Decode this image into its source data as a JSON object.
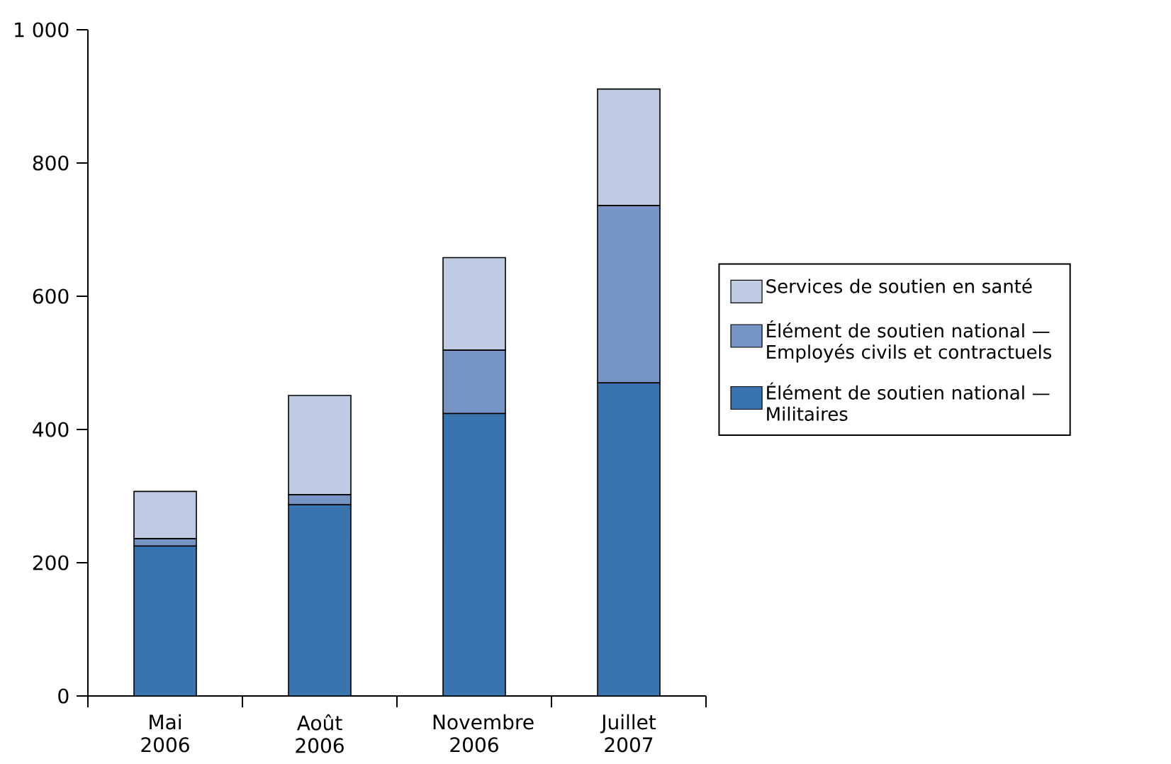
{
  "chart_data": {
    "type": "bar",
    "stacked": true,
    "categories": [
      "Mai 2006",
      "Août 2006",
      "Novembre 2006",
      "Juillet 2007"
    ],
    "series": [
      {
        "name": "Élément de soutien national — Militaires",
        "color": "#3a74ae",
        "values": [
          225,
          287,
          424,
          470
        ]
      },
      {
        "name": "Élément de soutien national — Employés civils et contractuels",
        "color": "#7795c4",
        "values": [
          11,
          15,
          95,
          266
        ]
      },
      {
        "name": "Services de soutien en santé",
        "color": "#bfcbe3",
        "values": [
          71,
          149,
          139,
          175
        ]
      }
    ],
    "ylim": [
      0,
      1000
    ],
    "yticks": [
      0,
      200,
      400,
      600,
      800,
      {
        "value": 1000,
        "label": "1 000"
      }
    ],
    "legend": "right",
    "grid": false
  }
}
